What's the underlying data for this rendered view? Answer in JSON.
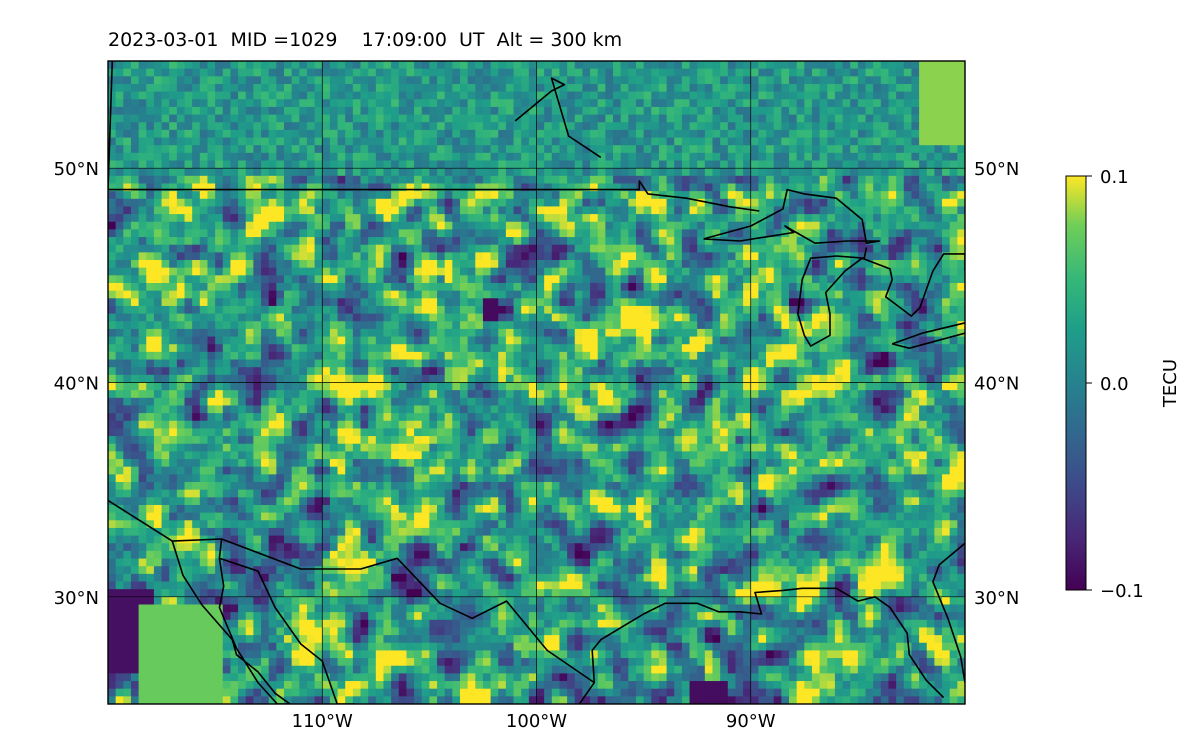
{
  "title": "2023-03-01  MID =1029    17:09:00  UT  Alt = 300 km",
  "map": {
    "lon_range": [
      -120,
      -80
    ],
    "lat_range": [
      25,
      55
    ],
    "meridians": [
      -110,
      -100,
      -90
    ],
    "parallels": [
      30,
      40,
      50
    ],
    "lon_labels": [
      "110°W",
      "100°W",
      "90°W"
    ],
    "lat_labels": [
      "30°N",
      "40°N",
      "50°N"
    ],
    "grid": true,
    "features": [
      "coastlines",
      "country-borders",
      "great-lakes",
      "gulf-of-mexico-coast",
      "baja-california",
      "gulf-of-california",
      "lake-winnipeg"
    ]
  },
  "chart_data": {
    "type": "heatmap",
    "quantity": "TEC perturbation",
    "colormap": "viridis",
    "vmin": -0.1,
    "vmax": 0.1,
    "colorbar": {
      "label": "TECU",
      "ticks": [
        -0.1,
        0.0,
        0.1
      ],
      "tick_labels": [
        "−0.1",
        "0.0",
        "0.1"
      ]
    }
  }
}
